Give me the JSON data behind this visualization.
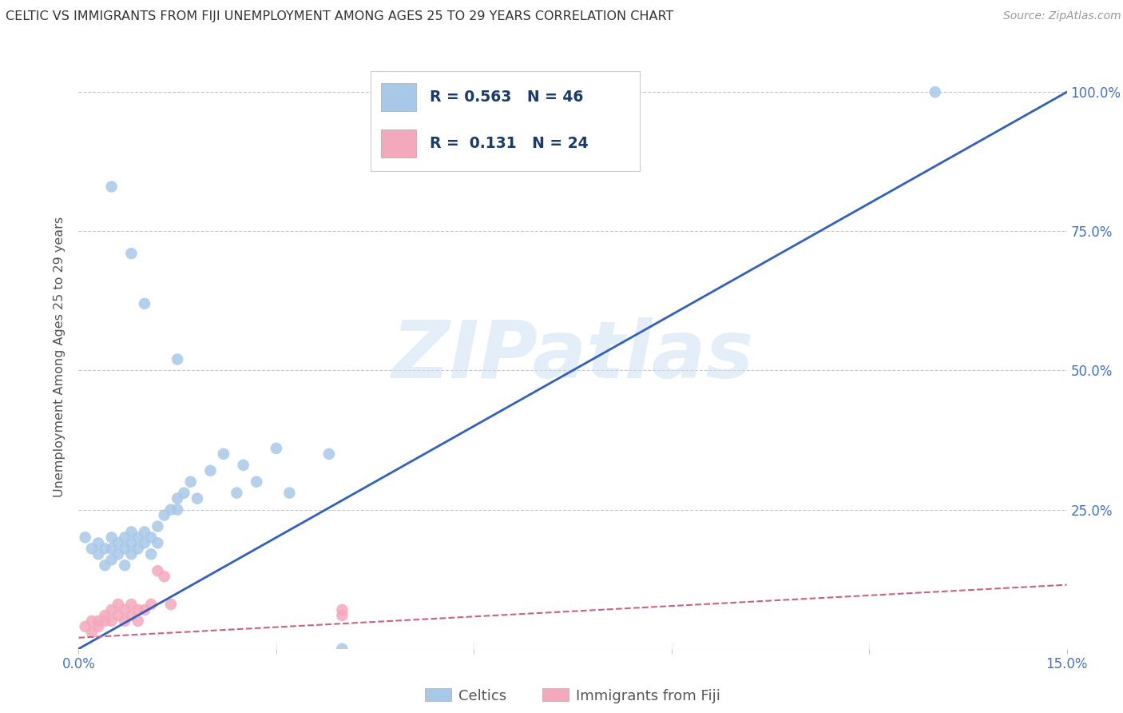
{
  "title": "CELTIC VS IMMIGRANTS FROM FIJI UNEMPLOYMENT AMONG AGES 25 TO 29 YEARS CORRELATION CHART",
  "source": "Source: ZipAtlas.com",
  "ylabel": "Unemployment Among Ages 25 to 29 years",
  "xlim": [
    0.0,
    0.15
  ],
  "ylim": [
    0.0,
    1.05
  ],
  "watermark": "ZIPatlas",
  "celtics_color": "#a8c8e8",
  "fiji_color": "#f4a8bc",
  "celtics_line_color": "#3060c0",
  "fiji_line_color": "#d06080",
  "celtics_R": 0.563,
  "celtics_N": 46,
  "fiji_R": 0.131,
  "fiji_N": 24,
  "legend_label_celtics": "Celtics",
  "legend_label_fiji": "Immigrants from Fiji",
  "axis_color": "#4472c4",
  "background_color": "#ffffff",
  "grid_color": "#bbbbbb",
  "celtics_x": [
    0.001,
    0.002,
    0.003,
    0.003,
    0.004,
    0.004,
    0.005,
    0.005,
    0.005,
    0.006,
    0.006,
    0.007,
    0.007,
    0.007,
    0.008,
    0.008,
    0.008,
    0.009,
    0.009,
    0.01,
    0.01,
    0.011,
    0.011,
    0.012,
    0.012,
    0.013,
    0.014,
    0.015,
    0.015,
    0.016,
    0.017,
    0.018,
    0.02,
    0.022,
    0.024,
    0.025,
    0.027,
    0.03,
    0.032,
    0.038,
    0.04,
    0.005,
    0.008,
    0.01,
    0.015,
    0.13
  ],
  "celtics_y": [
    0.2,
    0.18,
    0.19,
    0.17,
    0.18,
    0.15,
    0.2,
    0.18,
    0.16,
    0.19,
    0.17,
    0.2,
    0.18,
    0.15,
    0.21,
    0.19,
    0.17,
    0.2,
    0.18,
    0.21,
    0.19,
    0.2,
    0.17,
    0.22,
    0.19,
    0.24,
    0.25,
    0.27,
    0.25,
    0.28,
    0.3,
    0.27,
    0.32,
    0.35,
    0.28,
    0.33,
    0.3,
    0.36,
    0.28,
    0.35,
    0.0,
    0.83,
    0.71,
    0.62,
    0.52,
    1.0
  ],
  "fiji_x": [
    0.001,
    0.002,
    0.002,
    0.003,
    0.003,
    0.004,
    0.004,
    0.005,
    0.005,
    0.006,
    0.006,
    0.007,
    0.007,
    0.008,
    0.008,
    0.009,
    0.009,
    0.01,
    0.011,
    0.012,
    0.013,
    0.014,
    0.04,
    0.04
  ],
  "fiji_y": [
    0.04,
    0.05,
    0.03,
    0.05,
    0.04,
    0.06,
    0.05,
    0.07,
    0.05,
    0.08,
    0.06,
    0.07,
    0.05,
    0.08,
    0.06,
    0.07,
    0.05,
    0.07,
    0.08,
    0.14,
    0.13,
    0.08,
    0.07,
    0.06
  ],
  "celtic_line_x0": 0.0,
  "celtic_line_y0": 0.0,
  "celtic_line_x1": 0.15,
  "celtic_line_y1": 1.0,
  "fiji_line_x0": 0.0,
  "fiji_line_y0": 0.02,
  "fiji_line_x1": 0.15,
  "fiji_line_y1": 0.115
}
